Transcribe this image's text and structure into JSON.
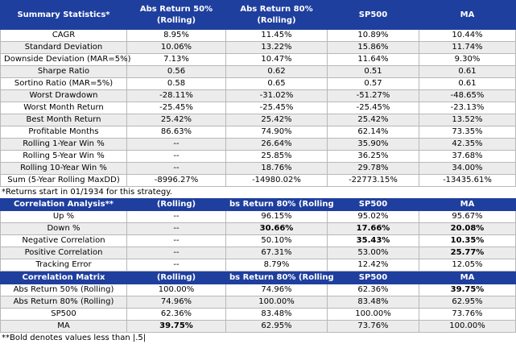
{
  "summary": {
    "header": [
      "Summary Statistics*",
      "Abs Return 50% (Rolling)",
      "Abs Return 80% (Rolling)",
      "SP500",
      "MA"
    ],
    "rows": [
      {
        "label": "CAGR",
        "values": [
          "8.95%",
          "11.45%",
          "10.89%",
          "10.44%"
        ]
      },
      {
        "label": "Standard Deviation",
        "values": [
          "10.06%",
          "13.22%",
          "15.86%",
          "11.74%"
        ]
      },
      {
        "label": "Downside Deviation (MAR=5%)",
        "values": [
          "7.13%",
          "10.47%",
          "11.64%",
          "9.30%"
        ]
      },
      {
        "label": "Sharpe Ratio",
        "values": [
          "0.56",
          "0.62",
          "0.51",
          "0.61"
        ]
      },
      {
        "label": "Sortino Ratio (MAR=5%)",
        "values": [
          "0.58",
          "0.65",
          "0.57",
          "0.61"
        ]
      },
      {
        "label": "Worst Drawdown",
        "values": [
          "-28.11%",
          "-31.02%",
          "-51.27%",
          "-48.65%"
        ]
      },
      {
        "label": "Worst Month Return",
        "values": [
          "-25.45%",
          "-25.45%",
          "-25.45%",
          "-23.13%"
        ]
      },
      {
        "label": "Best Month Return",
        "values": [
          "25.42%",
          "25.42%",
          "25.42%",
          "13.52%"
        ]
      },
      {
        "label": "Profitable Months",
        "values": [
          "86.63%",
          "74.90%",
          "62.14%",
          "73.35%"
        ]
      },
      {
        "label": "Rolling 1-Year Win %",
        "values": [
          "--",
          "26.64%",
          "35.90%",
          "42.35%"
        ]
      },
      {
        "label": "Rolling 5-Year Win %",
        "values": [
          "--",
          "25.85%",
          "36.25%",
          "37.68%"
        ]
      },
      {
        "label": "Rolling 10-Year Win %",
        "values": [
          "--",
          "18.76%",
          "29.78%",
          "34.00%"
        ]
      }
    ],
    "sum_row": {
      "label": "Sum (5-Year Rolling MaxDD)",
      "values": [
        "-8996.27%",
        "-14980.02%",
        "-22773.15%",
        "-13435.61%"
      ]
    },
    "note": "*Returns start in 01/1934 for this strategy."
  },
  "correlation_analysis": {
    "header": [
      "Correlation Analysis**",
      "(Rolling)",
      "bs Return 80% (Rolling",
      "SP500",
      "MA"
    ],
    "rows": [
      {
        "label": "Up %",
        "values": [
          "--",
          "96.15%",
          "95.02%",
          "95.67%"
        ],
        "bold": [
          false,
          false,
          false,
          false
        ]
      },
      {
        "label": "Down %",
        "values": [
          "--",
          "30.66%",
          "17.66%",
          "20.08%"
        ],
        "bold": [
          false,
          true,
          true,
          true
        ]
      },
      {
        "label": "Negative Correlation",
        "values": [
          "--",
          "50.10%",
          "35.43%",
          "10.35%"
        ],
        "bold": [
          false,
          false,
          true,
          true
        ]
      },
      {
        "label": "Positive Correlation",
        "values": [
          "--",
          "67.31%",
          "53.00%",
          "25.77%"
        ],
        "bold": [
          false,
          false,
          false,
          true
        ]
      },
      {
        "label": "Tracking Error",
        "values": [
          "--",
          "8.79%",
          "12.42%",
          "12.05%"
        ],
        "bold": [
          false,
          false,
          false,
          false
        ]
      }
    ]
  },
  "correlation_matrix": {
    "header": [
      "Correlation Matrix",
      "(Rolling)",
      "bs Return 80% (Rolling",
      "SP500",
      "MA"
    ],
    "rows": [
      {
        "label": "Abs Return 50% (Rolling)",
        "values": [
          "100.00%",
          "74.96%",
          "62.36%",
          "39.75%"
        ],
        "bold": [
          false,
          false,
          false,
          true
        ]
      },
      {
        "label": "Abs Return 80% (Rolling)",
        "values": [
          "74.96%",
          "100.00%",
          "83.48%",
          "62.95%"
        ],
        "bold": [
          false,
          false,
          false,
          false
        ]
      },
      {
        "label": "SP500",
        "values": [
          "62.36%",
          "83.48%",
          "100.00%",
          "73.76%"
        ],
        "bold": [
          false,
          false,
          false,
          false
        ]
      },
      {
        "label": "MA",
        "values": [
          "39.75%",
          "62.95%",
          "73.76%",
          "100.00%"
        ],
        "bold": [
          true,
          false,
          false,
          false
        ]
      }
    ],
    "note": "**Bold denotes values less than |.5|"
  }
}
